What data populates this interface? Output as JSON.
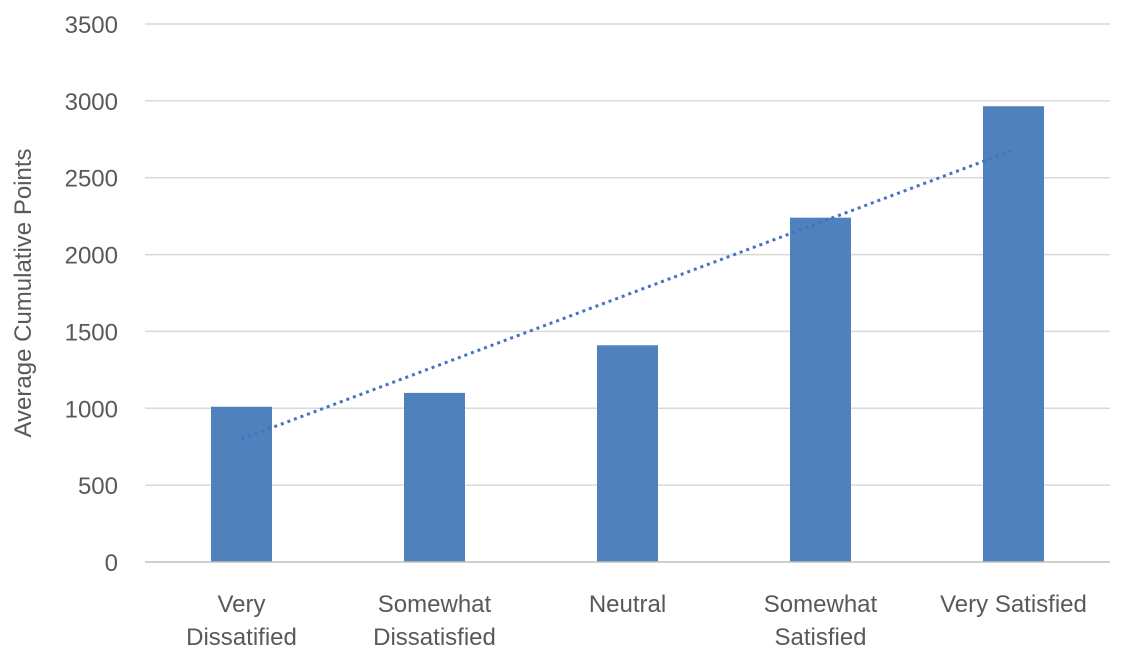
{
  "chart_data": {
    "type": "bar",
    "title": "",
    "xlabel": "",
    "ylabel": "Average Cumulative Points",
    "ylim": [
      0,
      3500
    ],
    "yticks": [
      0,
      500,
      1000,
      1500,
      2000,
      2500,
      3000,
      3500
    ],
    "grid": true,
    "legend": "none",
    "categories": [
      [
        "Very",
        "Dissatified"
      ],
      [
        "Somewhat",
        "Dissatisfied"
      ],
      [
        "Neutral"
      ],
      [
        "Somewhat",
        "Satisfied"
      ],
      [
        "Very Satisfied"
      ]
    ],
    "series": [
      {
        "values": [
          1010,
          1100,
          1410,
          2240,
          2965
        ],
        "color": "#4F81BD"
      }
    ],
    "trendline": {
      "type": "linear",
      "style": "dotted",
      "color": "#4472C4",
      "start_value": 800,
      "end_value": 2680
    },
    "colors": {
      "grid": "#D9D9D9",
      "axis": "#BFBFBF",
      "text": "#595959"
    }
  }
}
